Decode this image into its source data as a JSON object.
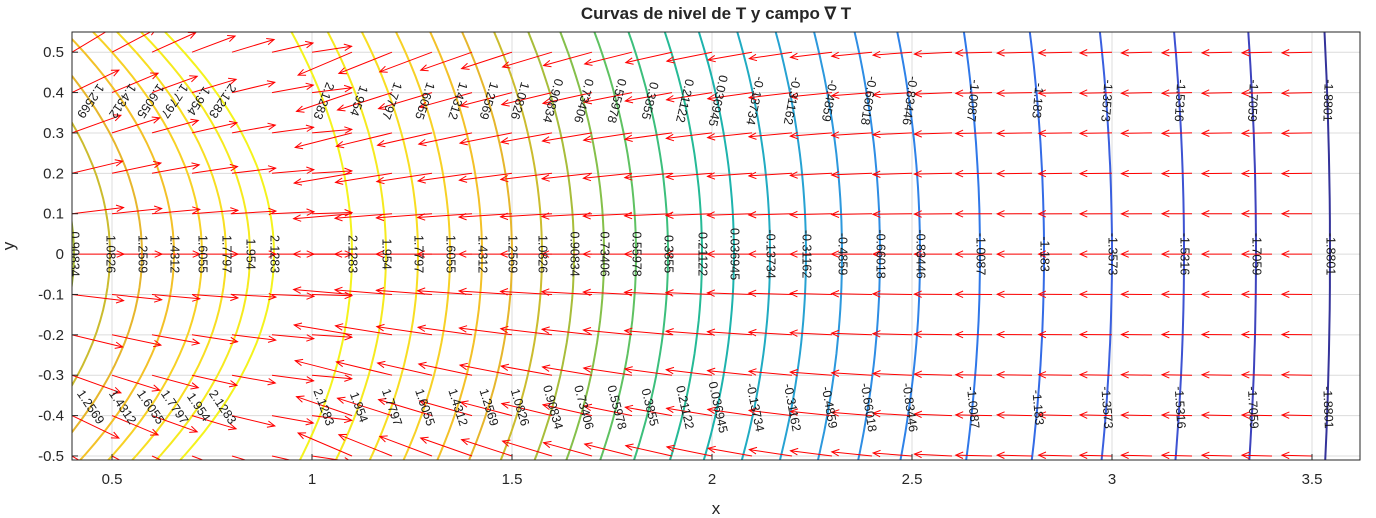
{
  "chart_data": {
    "type": "contour",
    "title": "Curvas de nivel de T y campo ∇ T",
    "xlabel": "x",
    "ylabel": "y",
    "xlim": [
      0.4,
      3.62
    ],
    "ylim": [
      -0.51,
      0.55
    ],
    "x_ticks": [
      0.5,
      1,
      1.5,
      2,
      2.5,
      3,
      3.5
    ],
    "x_tick_labels": [
      "0.5",
      "1",
      "1.5",
      "2",
      "2.5",
      "3",
      "3.5"
    ],
    "y_ticks": [
      0.5,
      0.4,
      0.3,
      0.2,
      0.1,
      0,
      -0.1,
      -0.2,
      -0.3,
      -0.4,
      -0.5
    ],
    "y_tick_labels": [
      "0.5",
      "0.4",
      "0.3",
      "0.2",
      "0.1",
      "0",
      "-0.1",
      "-0.2",
      "-0.3",
      "-0.4",
      "-0.5"
    ],
    "grid": true,
    "contour_series": [
      {
        "panel": 1,
        "level": 0.90834,
        "label": "0.90834",
        "x_at_y0": 0.405,
        "color": "#a8bd3a"
      },
      {
        "panel": 1,
        "level": 1.0826,
        "label": "1.0826",
        "x_at_y0": 0.495,
        "color": "#cbbc2e"
      },
      {
        "panel": 1,
        "level": 1.2569,
        "label": "1.2569",
        "x_at_y0": 0.575,
        "color": "#e6b62c"
      },
      {
        "panel": 1,
        "level": 1.4312,
        "label": "1.4312",
        "x_at_y0": 0.655,
        "color": "#f3c128"
      },
      {
        "panel": 1,
        "level": 1.6055,
        "label": "1.6055",
        "x_at_y0": 0.725,
        "color": "#f7d126"
      },
      {
        "panel": 1,
        "level": 1.7797,
        "label": "1.7797",
        "x_at_y0": 0.785,
        "color": "#f8de22"
      },
      {
        "panel": 1,
        "level": 1.954,
        "label": "1.954",
        "x_at_y0": 0.845,
        "color": "#f6ea1f"
      },
      {
        "panel": 1,
        "level": 2.1283,
        "label": "2.1283",
        "x_at_y0": 0.905,
        "color": "#f4f31d"
      },
      {
        "panel": 2,
        "level": 2.1283,
        "label": "2.1283",
        "x_at_y0": 1.1,
        "color": "#f4f31d"
      },
      {
        "panel": 2,
        "level": 1.954,
        "label": "1.954",
        "x_at_y0": 1.185,
        "color": "#f6ea1f"
      },
      {
        "panel": 2,
        "level": 1.7797,
        "label": "1.7797",
        "x_at_y0": 1.265,
        "color": "#f8de22"
      },
      {
        "panel": 2,
        "level": 1.6055,
        "label": "1.6055",
        "x_at_y0": 1.345,
        "color": "#f7d126"
      },
      {
        "panel": 2,
        "level": 1.4312,
        "label": "1.4312",
        "x_at_y0": 1.425,
        "color": "#f3c128"
      },
      {
        "panel": 2,
        "level": 1.2569,
        "label": "1.2569",
        "x_at_y0": 1.5,
        "color": "#e6b62c"
      },
      {
        "panel": 2,
        "level": 1.0826,
        "label": "1.0826",
        "x_at_y0": 1.575,
        "color": "#cbbc2e"
      },
      {
        "panel": 2,
        "level": 0.90834,
        "label": "0.90834",
        "x_at_y0": 1.655,
        "color": "#a8bd3a"
      },
      {
        "panel": 2,
        "level": 0.73406,
        "label": "0.73406",
        "x_at_y0": 1.73,
        "color": "#85c04a"
      },
      {
        "panel": 2,
        "level": 0.55978,
        "label": "0.55978",
        "x_at_y0": 1.81,
        "color": "#5fc262"
      },
      {
        "panel": 2,
        "level": 0.3855,
        "label": "0.3855",
        "x_at_y0": 1.89,
        "color": "#3cbf7c"
      },
      {
        "panel": 2,
        "level": 0.21122,
        "label": "0.21122",
        "x_at_y0": 1.975,
        "color": "#25ba96"
      },
      {
        "panel": 2,
        "level": 0.036945,
        "label": "0.036945",
        "x_at_y0": 2.055,
        "color": "#1db3ad"
      },
      {
        "panel": 2,
        "level": -0.13734,
        "label": "-0.13734",
        "x_at_y0": 2.145,
        "color": "#20abc2"
      },
      {
        "panel": 2,
        "level": -0.31162,
        "label": "-0.31162",
        "x_at_y0": 2.235,
        "color": "#26a2d2"
      },
      {
        "panel": 2,
        "level": -0.4859,
        "label": "-0.4859",
        "x_at_y0": 2.325,
        "color": "#2c98dd"
      },
      {
        "panel": 2,
        "level": -0.66018,
        "label": "-0.66018",
        "x_at_y0": 2.42,
        "color": "#2e8de4"
      },
      {
        "panel": 2,
        "level": -0.83446,
        "label": "-0.83446",
        "x_at_y0": 2.52,
        "color": "#2e82e8"
      },
      {
        "panel": 3,
        "level": -1.0087,
        "label": "-1.0087",
        "x_at_y0": 2.67,
        "color": "#2f77e9"
      },
      {
        "panel": 3,
        "level": -1.183,
        "label": "-1.183",
        "x_at_y0": 2.83,
        "color": "#346be6"
      },
      {
        "panel": 3,
        "level": -1.3573,
        "label": "-1.3573",
        "x_at_y0": 3.0,
        "color": "#3a5fdf"
      },
      {
        "panel": 3,
        "level": -1.5316,
        "label": "-1.5316",
        "x_at_y0": 3.18,
        "color": "#3e52d2"
      },
      {
        "panel": 3,
        "level": -1.7059,
        "label": "-1.7059",
        "x_at_y0": 3.36,
        "color": "#3d43bd"
      },
      {
        "panel": 3,
        "level": -1.8801,
        "label": "-1.8801",
        "x_at_y0": 3.545,
        "color": "#34339a"
      }
    ],
    "quiver": {
      "name": "∇ T",
      "color": "#ff0000",
      "x_spacing": 0.1,
      "y_spacing": 0.1
    }
  }
}
